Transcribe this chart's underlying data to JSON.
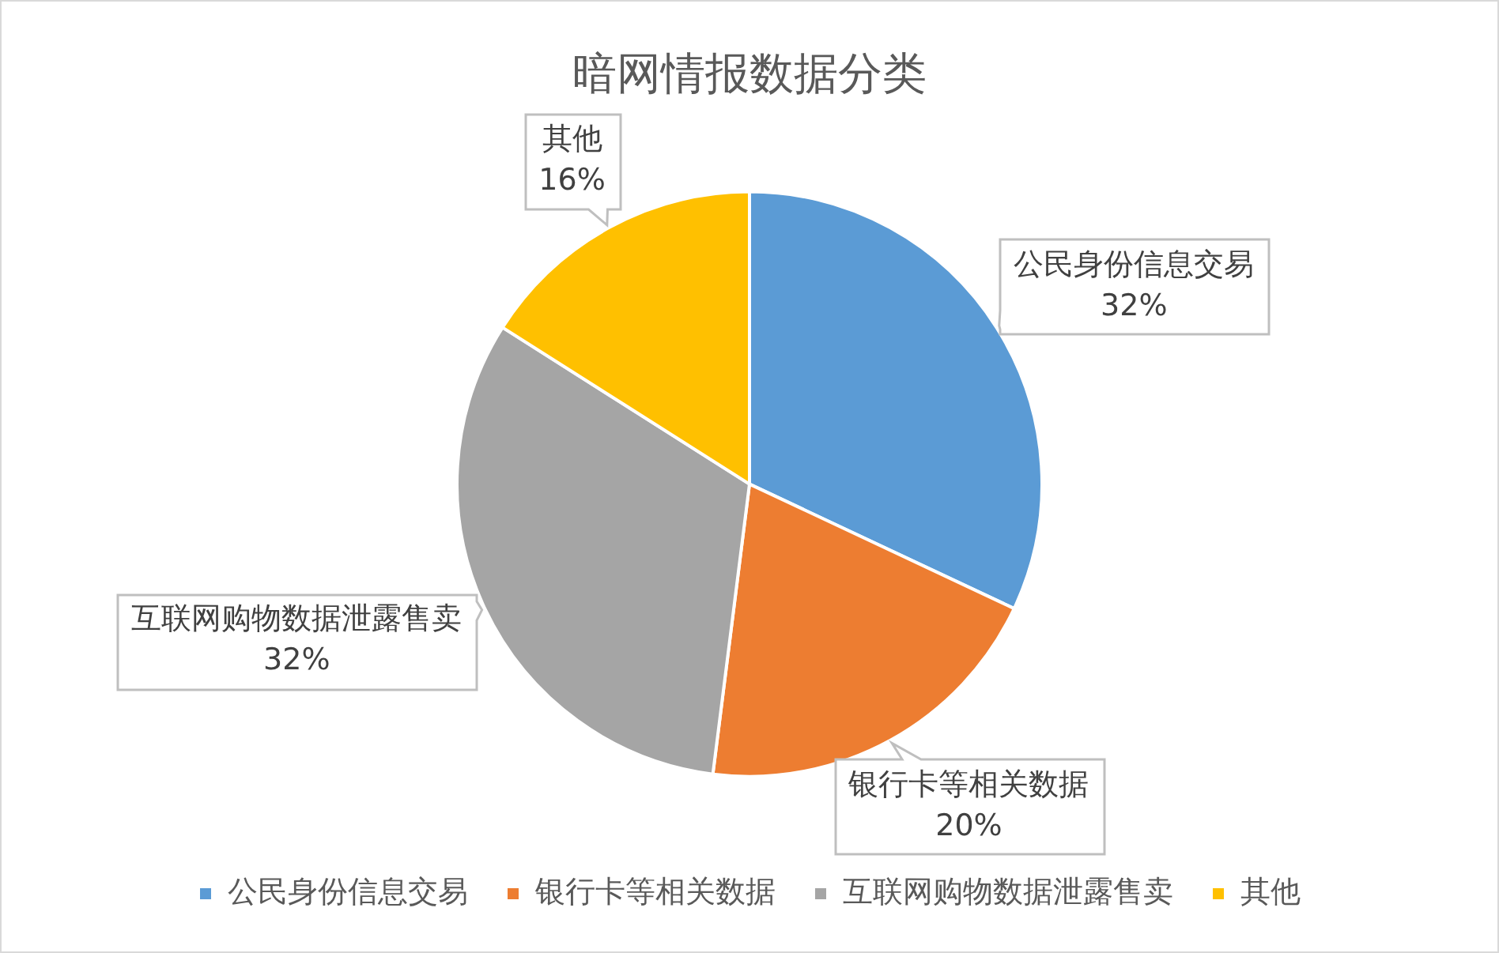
{
  "chart_data": {
    "type": "pie",
    "title": "暗网情报数据分类",
    "categories": [
      "公民身份信息交易",
      "银行卡等相关数据",
      "互联网购物数据泄露售卖",
      "其他"
    ],
    "values": [
      32,
      20,
      32,
      16
    ],
    "colors": [
      "#5b9bd5",
      "#ed7d31",
      "#a5a5a5",
      "#ffc000"
    ],
    "value_labels": [
      "32%",
      "20%",
      "32%",
      "16%"
    ],
    "legend": "bottom"
  }
}
